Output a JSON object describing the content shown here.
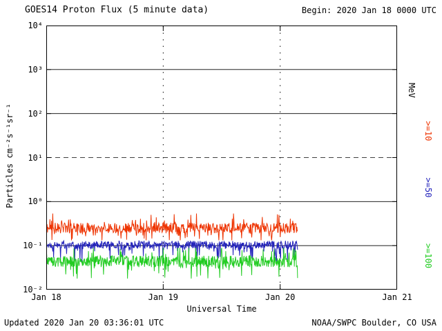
{
  "header": {
    "title": "GOES14 Proton Flux (5 minute data)",
    "begin_label": "Begin: 2020 Jan 18 0000 UTC"
  },
  "footer": {
    "updated": "Updated 2020 Jan 20 03:36:01 UTC",
    "source": "NOAA/SWPC Boulder, CO USA"
  },
  "chart_data": {
    "type": "line",
    "title": "GOES14 Proton Flux (5 minute data)",
    "xlabel": "Universal Time",
    "ylabel": "Particles cm⁻²s⁻¹sr⁻¹",
    "x_axis": {
      "range_days": [
        0,
        3
      ],
      "tick_labels": [
        "Jan 18",
        "Jan 19",
        "Jan 20",
        "Jan 21"
      ],
      "tick_days": [
        0,
        1,
        2,
        3
      ]
    },
    "y_axis": {
      "scale": "log10",
      "range": [
        0.01,
        10000
      ],
      "tick_labels": [
        {
          "label": "10⁴",
          "exp": 4
        },
        {
          "label": "10³",
          "exp": 3
        },
        {
          "label": "10²",
          "exp": 2
        },
        {
          "label": "10¹",
          "exp": 1
        },
        {
          "label": "10⁰",
          "exp": 0
        },
        {
          "label": "10⁻¹",
          "exp": -1
        },
        {
          "label": "10⁻²",
          "exp": -2
        }
      ]
    },
    "grid": {
      "h_solid_exponents": [
        3,
        2,
        0,
        -1
      ],
      "h_dashed_exponents": [
        1
      ],
      "v_dashed_days": [
        1,
        2
      ]
    },
    "right_axis_labels": [
      {
        "text": "MeV",
        "color": "#000000"
      },
      {
        "text": ">=10",
        "color": "#ee3300"
      },
      {
        "text": ">=50",
        "color": "#2222bb"
      },
      {
        "text": ">=100",
        "color": "#22cc22"
      }
    ],
    "series": [
      {
        "name": ">=10 MeV",
        "color": "#ee3300",
        "start_day": 0,
        "end_day": 2.15,
        "samples_per_day": 288,
        "log10_mean": -0.6,
        "log10_jitter": 0.12,
        "spike_prob": 0.18,
        "spike_amp": 0.3,
        "spike_bias": 0,
        "clamp": [
          -0.88,
          -0.27
        ],
        "seed": 11,
        "approx_flux_mean": 0.25,
        "approx_flux_range": [
          0.13,
          0.54
        ]
      },
      {
        "name": ">=50 MeV",
        "color": "#2222bb",
        "start_day": 0,
        "end_day": 2.15,
        "samples_per_day": 288,
        "log10_mean": -0.98,
        "log10_jitter": 0.09,
        "spike_prob": 0.15,
        "spike_amp": 0.35,
        "spike_bias": -1,
        "clamp": [
          -1.45,
          -0.76
        ],
        "seed": 22,
        "approx_flux_mean": 0.1,
        "approx_flux_range": [
          0.035,
          0.17
        ]
      },
      {
        "name": ">=100 MeV",
        "color": "#22cc22",
        "start_day": 0,
        "end_day": 2.15,
        "samples_per_day": 288,
        "log10_mean": -1.36,
        "log10_jitter": 0.13,
        "spike_prob": 0.18,
        "spike_amp": 0.3,
        "spike_bias": 0,
        "clamp": [
          -1.75,
          -1.05
        ],
        "seed": 33,
        "approx_flux_mean": 0.044,
        "approx_flux_range": [
          0.018,
          0.09
        ]
      }
    ]
  }
}
